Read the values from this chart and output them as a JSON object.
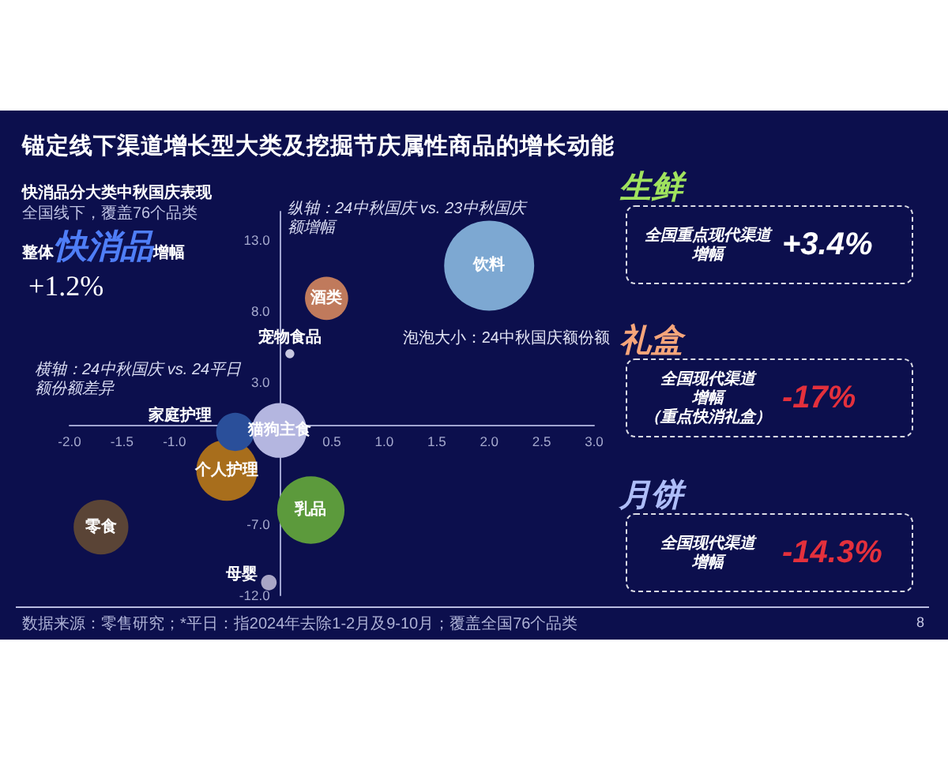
{
  "chart_data": [
    {
      "type": "bubble",
      "title": "锚定线下渠道增长型大类及挖掘节庆属性商品的增长动能",
      "subtitle": "快消品分大类中秋国庆表现",
      "xlabel": "横轴：24中秋国庆 vs. 24平日额份额差异",
      "ylabel": "纵轴：24中秋国庆 vs. 23中秋国庆额增幅",
      "annotations": [
        "全国线下，覆盖76个品类",
        "泡泡大小：24中秋国庆额份额",
        "数据来源：零售研究；*平日：指2024年去除1-2月及9-10月；覆盖全国76个品类",
        "8"
      ],
      "xlim": [
        -2,
        3
      ],
      "ylim": [
        -12,
        15
      ],
      "xticks": [
        {
          "value": -2,
          "label": "-2.0"
        },
        {
          "value": -1.5,
          "label": "-1.5"
        },
        {
          "value": -1,
          "label": "-1.0"
        },
        {
          "value": 0.5,
          "label": "0.5"
        },
        {
          "value": 1,
          "label": "1.0"
        },
        {
          "value": 1.5,
          "label": "1.5"
        },
        {
          "value": 2,
          "label": "2.0"
        },
        {
          "value": 2.5,
          "label": "2.5"
        },
        {
          "value": 3,
          "label": "3.0"
        }
      ],
      "yticks": [
        {
          "value": -12,
          "label": "-12.0"
        },
        {
          "value": -7,
          "label": "-7.0"
        },
        {
          "value": 3,
          "label": "3.0"
        },
        {
          "value": 8,
          "label": "8.0"
        },
        {
          "value": 13,
          "label": "13.0"
        }
      ],
      "series": [
        {
          "name": "饮料",
          "color": "#7da8d2",
          "x": [
            2.0
          ],
          "values": [
            11.2
          ],
          "sizes": [
            1
          ]
        },
        {
          "name": "酒类",
          "color": "#c07a5c",
          "x": [
            0.45
          ],
          "values": [
            8.9
          ],
          "sizes": [
            0.23
          ]
        },
        {
          "name": "宠物食品",
          "color": "#c8c8e0",
          "x": [
            0.1
          ],
          "values": [
            5.0
          ],
          "sizes": [
            0.01
          ]
        },
        {
          "name": "个人护理",
          "color": "#a86e1c",
          "x": [
            -0.5
          ],
          "values": [
            -3.2
          ],
          "sizes": [
            0.46
          ]
        },
        {
          "name": "家庭护理",
          "color": "#2a4f9a",
          "x": [
            -0.42
          ],
          "values": [
            -0.5
          ],
          "sizes": [
            0.18
          ]
        },
        {
          "name": "猫狗主食",
          "color": "#b4b6e0",
          "x": [
            0.0
          ],
          "values": [
            -0.4
          ],
          "sizes": [
            0.37
          ]
        },
        {
          "name": "乳品",
          "color": "#5c9a3c",
          "x": [
            0.3
          ],
          "values": [
            -6.0
          ],
          "sizes": [
            0.56
          ]
        },
        {
          "name": "零食",
          "color": "#5a4436",
          "x": [
            -1.7
          ],
          "values": [
            -7.2
          ],
          "sizes": [
            0.37
          ]
        },
        {
          "name": "母婴",
          "color": "#a9a6c6",
          "x": [
            -0.1
          ],
          "values": [
            -11.1
          ],
          "sizes": [
            0.03
          ]
        }
      ]
    },
    {
      "type": "other",
      "annotations": [
        "整体",
        "快消品",
        "增幅",
        "+1.2%"
      ]
    },
    {
      "type": "other",
      "title": "生鲜",
      "annotations": [
        "全国重点现代渠道",
        "增幅",
        "+3.4%"
      ]
    },
    {
      "type": "other",
      "title": "礼盒",
      "annotations": [
        "全国现代渠道",
        "增幅",
        "（重点快消礼盒）",
        "-17%"
      ]
    },
    {
      "type": "other",
      "title": "月饼",
      "annotations": [
        "全国现代渠道",
        "增幅",
        "-14.3%"
      ]
    }
  ]
}
